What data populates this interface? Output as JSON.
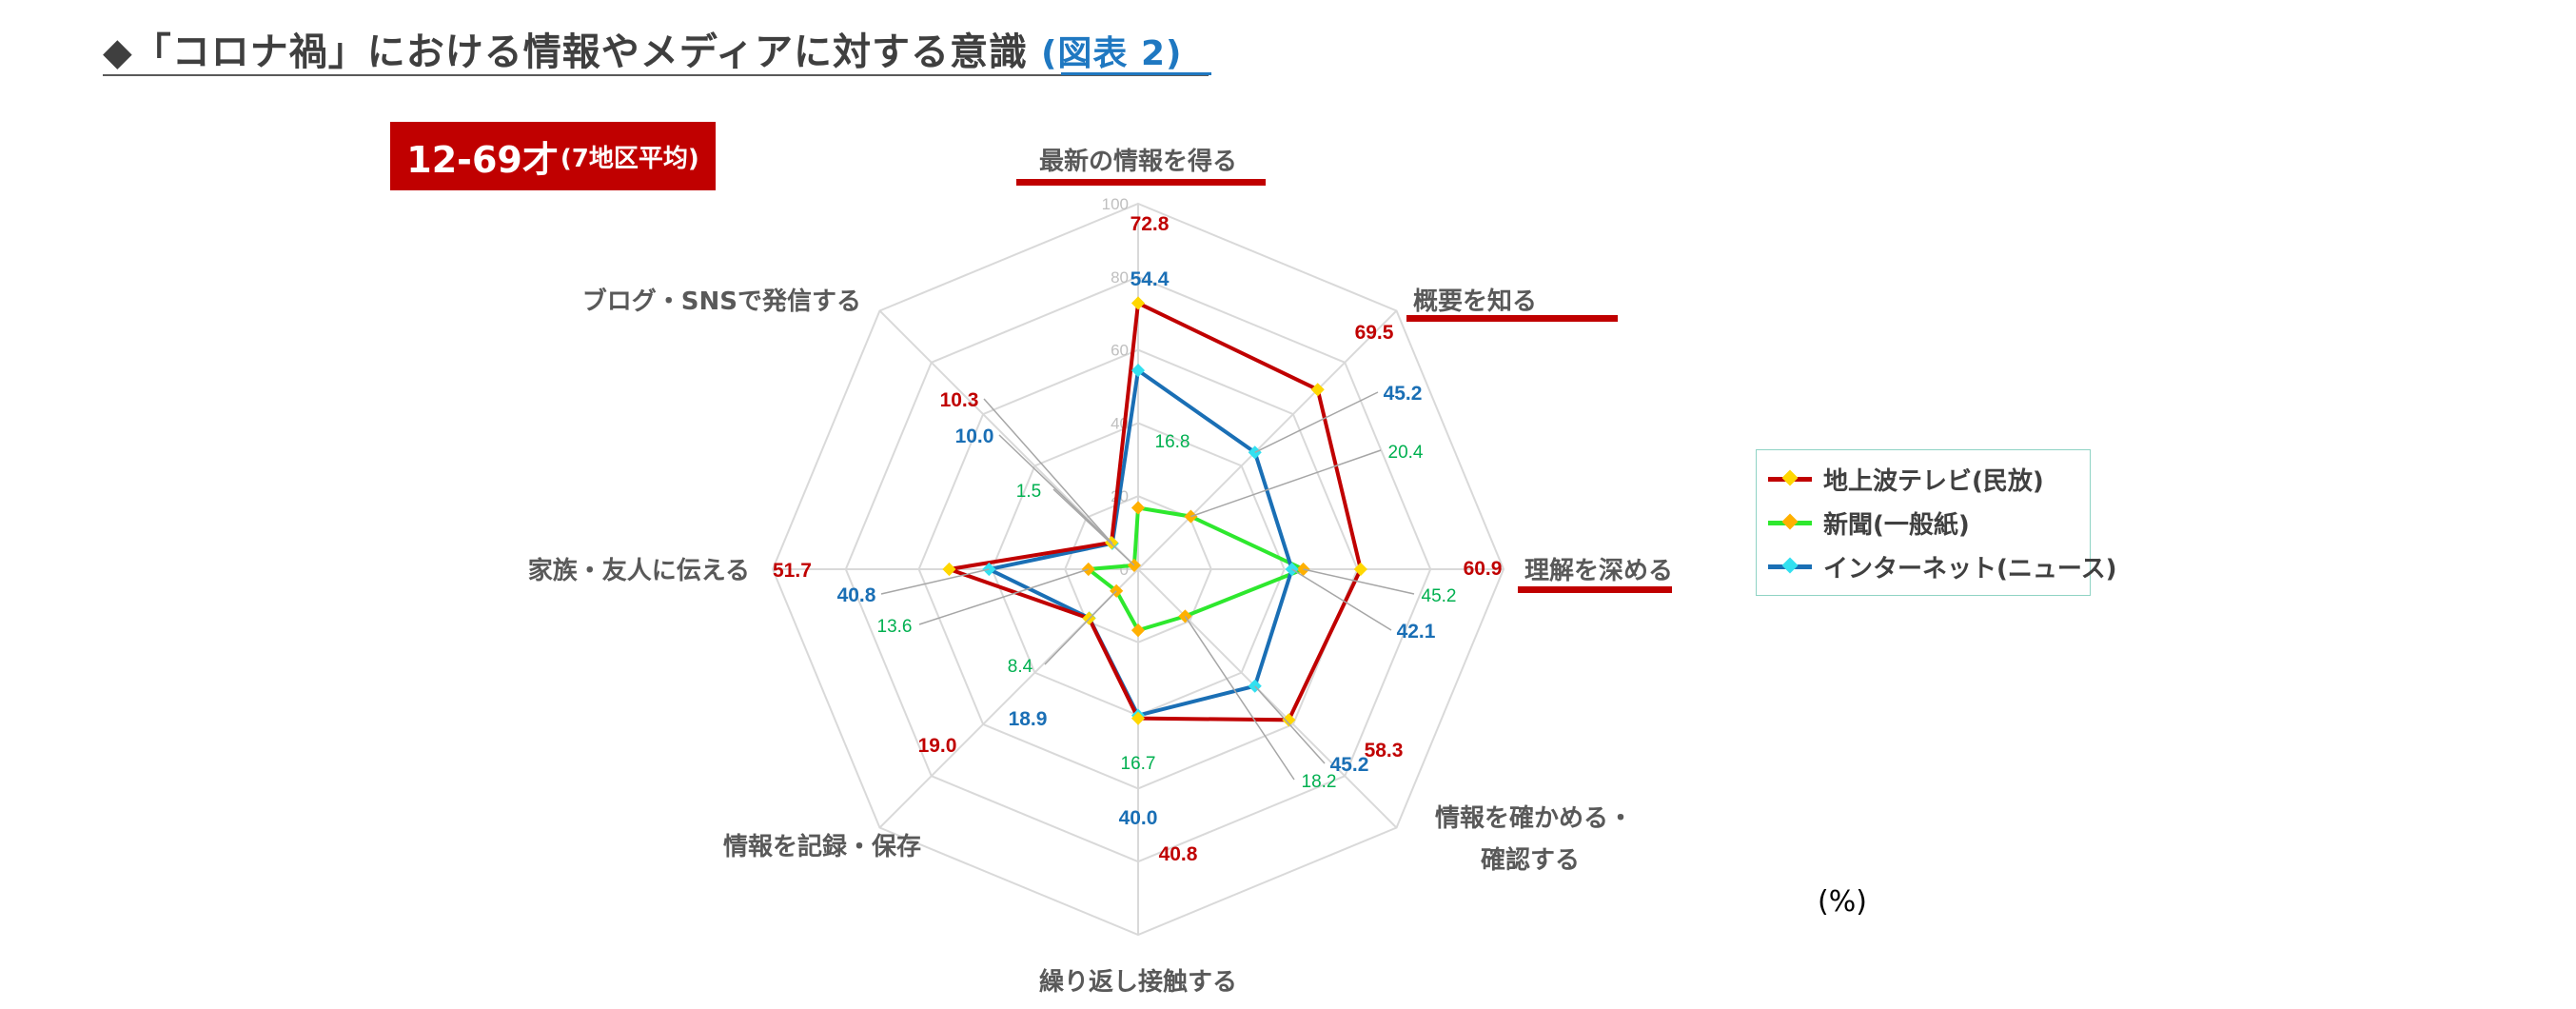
{
  "header": {
    "title": "◆「コロナ禍」における情報やメディアに対する意識",
    "figure_ref": "(図表 2)"
  },
  "badge": {
    "main": "12-69才",
    "sub": "(7地区平均)"
  },
  "unit_label": "(%)",
  "colors": {
    "tv": "#c00000",
    "newspaper": "#2ee82e",
    "internet": "#1a6fb5",
    "tv_label": "#c00000",
    "newspaper_label": "#00b050",
    "internet_label": "#1a6fb5",
    "marker_tv": "#ffd700",
    "marker_newspaper": "#ffb000",
    "marker_internet": "#33e0f0",
    "highlight_bar": "#c00000",
    "axis_text": "#595959",
    "grid": "#d9d9d9"
  },
  "chart_data": {
    "type": "radar",
    "rlim": [
      0,
      100
    ],
    "ticks": [
      "100",
      "80",
      "60",
      "40",
      "20",
      "0"
    ],
    "grid": true,
    "legend_position": "right",
    "categories": [
      "最新の情報を得る",
      "概要を知る",
      "理解を深める",
      "情報を確かめる・確認する",
      "繰り返し接触する",
      "情報を記録・保存",
      "家族・友人に伝える",
      "ブログ・SNSで発信する"
    ],
    "category_lines": [
      [
        "最新の情報を得る"
      ],
      [
        "概要を知る"
      ],
      [
        "理解を深める"
      ],
      [
        "情報を確かめる・",
        "確認する"
      ],
      [
        "繰り返し接触する"
      ],
      [
        "情報を記録・保存"
      ],
      [
        "家族・友人に伝える"
      ],
      [
        "ブログ・SNSで発信する"
      ]
    ],
    "highlighted_categories": [
      0,
      1,
      2
    ],
    "series": [
      {
        "name": "地上波テレビ(民放)",
        "key": "tv",
        "values": [
          72.8,
          69.5,
          60.9,
          58.3,
          40.8,
          19.0,
          51.7,
          10.3
        ],
        "labels": [
          "72.8",
          "69.5",
          "60.9",
          "58.3",
          "40.8",
          "19.0",
          "51.7",
          "10.3"
        ]
      },
      {
        "name": "新聞(一般紙)",
        "key": "newspaper",
        "values": [
          16.8,
          20.4,
          45.2,
          18.2,
          16.7,
          8.4,
          13.6,
          1.5
        ],
        "labels": [
          "16.8",
          "20.4",
          "45.2",
          "18.2",
          "16.7",
          "8.4",
          "13.6",
          "1.5"
        ]
      },
      {
        "name": "インターネット(ニュース)",
        "key": "internet",
        "values": [
          54.4,
          45.2,
          42.1,
          45.2,
          40.0,
          18.9,
          40.8,
          10.0
        ],
        "labels": [
          "54.4",
          "45.2",
          "42.1",
          "45.2",
          "40.0",
          "18.9",
          "40.8",
          "10.0"
        ]
      }
    ]
  }
}
